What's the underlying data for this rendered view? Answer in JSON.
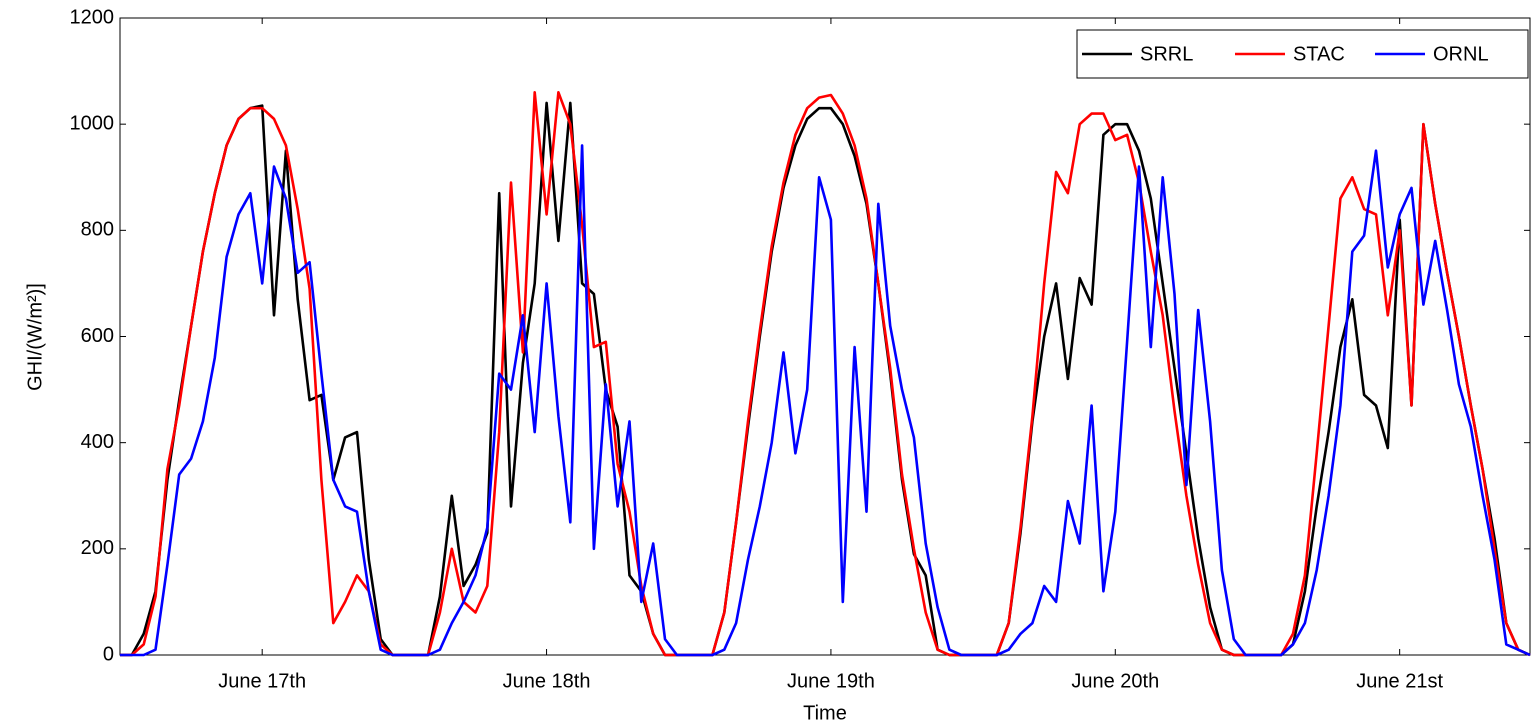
{
  "chart_data": {
    "type": "line",
    "xlabel": "Time",
    "ylabel": "GHI/(W/m²)]",
    "x": [
      0,
      1,
      2,
      3,
      4,
      5,
      6,
      7,
      8,
      9,
      10,
      11,
      12,
      13,
      14,
      15,
      16,
      17,
      18,
      19,
      20,
      21,
      22,
      23,
      24,
      25,
      26,
      27,
      28,
      29,
      30,
      31,
      32,
      33,
      34,
      35,
      36,
      37,
      38,
      39,
      40,
      41,
      42,
      43,
      44,
      45,
      46,
      47,
      48,
      49,
      50,
      51,
      52,
      53,
      54,
      55,
      56,
      57,
      58,
      59,
      60,
      61,
      62,
      63,
      64,
      65,
      66,
      67,
      68,
      69,
      70,
      71,
      72,
      73,
      74,
      75,
      76,
      77,
      78,
      79,
      80,
      81,
      82,
      83,
      84,
      85,
      86,
      87,
      88,
      89,
      90,
      91,
      92,
      93,
      94,
      95,
      96,
      97,
      98,
      99,
      100,
      101,
      102,
      103,
      104,
      105,
      106,
      107,
      108,
      109,
      110,
      111,
      112,
      113,
      114,
      115,
      116,
      117,
      118,
      119
    ],
    "xlim": [
      0,
      119
    ],
    "xticks": [
      {
        "value": 12,
        "label": "June 17th"
      },
      {
        "value": 36,
        "label": "June 18th"
      },
      {
        "value": 60,
        "label": "June 19th"
      },
      {
        "value": 84,
        "label": "June 20th"
      },
      {
        "value": 108,
        "label": "June 21st"
      }
    ],
    "ylim": [
      0,
      1200
    ],
    "yticks": [
      0,
      200,
      400,
      600,
      800,
      1000,
      1200
    ],
    "legend": "upper right",
    "series": [
      {
        "name": "SRRL",
        "color": "#000000",
        "values": [
          0,
          0,
          40,
          120,
          330,
          480,
          620,
          760,
          870,
          960,
          1010,
          1030,
          1035,
          640,
          950,
          670,
          480,
          490,
          330,
          410,
          420,
          180,
          30,
          0,
          0,
          0,
          0,
          110,
          300,
          130,
          170,
          230,
          870,
          280,
          550,
          700,
          1040,
          780,
          1040,
          700,
          680,
          500,
          430,
          150,
          120,
          40,
          0,
          0,
          0,
          0,
          0,
          80,
          250,
          430,
          600,
          760,
          880,
          960,
          1010,
          1030,
          1030,
          1000,
          940,
          850,
          700,
          530,
          330,
          190,
          150,
          10,
          0,
          0,
          0,
          0,
          0,
          60,
          230,
          440,
          600,
          700,
          520,
          710,
          660,
          980,
          1000,
          1000,
          950,
          860,
          700,
          540,
          380,
          220,
          90,
          10,
          0,
          0,
          0,
          0,
          0,
          20,
          120,
          280,
          420,
          580,
          670,
          490,
          470,
          390,
          820,
          470,
          1000,
          850,
          720,
          600,
          470,
          350,
          220,
          60,
          10,
          0
        ]
      },
      {
        "name": "STAC",
        "color": "#ff0000",
        "values": [
          0,
          0,
          20,
          110,
          350,
          470,
          620,
          760,
          870,
          960,
          1010,
          1030,
          1030,
          1010,
          960,
          840,
          690,
          330,
          60,
          100,
          150,
          120,
          20,
          0,
          0,
          0,
          0,
          80,
          200,
          100,
          80,
          130,
          420,
          890,
          570,
          1060,
          830,
          1060,
          1000,
          810,
          580,
          590,
          360,
          270,
          130,
          40,
          0,
          0,
          0,
          0,
          0,
          80,
          250,
          440,
          610,
          770,
          890,
          980,
          1030,
          1050,
          1055,
          1020,
          960,
          860,
          700,
          540,
          340,
          200,
          80,
          10,
          0,
          0,
          0,
          0,
          0,
          60,
          240,
          450,
          700,
          910,
          870,
          1000,
          1020,
          1020,
          970,
          980,
          890,
          760,
          640,
          460,
          300,
          170,
          60,
          10,
          0,
          0,
          0,
          0,
          0,
          40,
          150,
          380,
          620,
          860,
          900,
          840,
          830,
          640,
          800,
          470,
          1000,
          850,
          720,
          600,
          470,
          350,
          200,
          60,
          10,
          0
        ]
      },
      {
        "name": "ORNL",
        "color": "#0000ff",
        "values": [
          0,
          0,
          0,
          10,
          170,
          340,
          370,
          440,
          560,
          750,
          830,
          870,
          700,
          920,
          860,
          720,
          740,
          530,
          330,
          280,
          270,
          120,
          10,
          0,
          0,
          0,
          0,
          10,
          60,
          100,
          150,
          240,
          530,
          500,
          640,
          420,
          700,
          450,
          250,
          960,
          200,
          510,
          280,
          440,
          100,
          210,
          30,
          0,
          0,
          0,
          0,
          10,
          60,
          180,
          280,
          400,
          570,
          380,
          500,
          900,
          820,
          100,
          580,
          270,
          850,
          620,
          500,
          410,
          210,
          90,
          10,
          0,
          0,
          0,
          0,
          10,
          40,
          60,
          130,
          100,
          290,
          210,
          470,
          120,
          270,
          590,
          920,
          580,
          900,
          680,
          320,
          650,
          440,
          160,
          30,
          0,
          0,
          0,
          0,
          20,
          60,
          160,
          300,
          470,
          760,
          790,
          950,
          730,
          830,
          880,
          660,
          780,
          650,
          510,
          430,
          300,
          180,
          20,
          10,
          0
        ]
      }
    ]
  }
}
